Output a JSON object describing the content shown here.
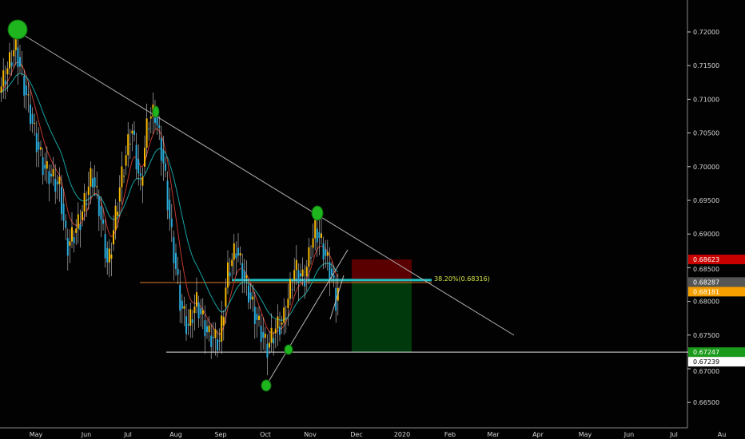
{
  "chart_data": {
    "type": "candlestick",
    "x_tick_labels": [
      "May",
      "Jun",
      "Jul",
      "Aug",
      "Sep",
      "Oct",
      "Nov",
      "Dec",
      "2020",
      "Feb",
      "Mar",
      "Apr",
      "May",
      "Jun",
      "Jul",
      "Au"
    ],
    "y_tick_labels": [
      "0.72000",
      "0.71500",
      "0.71000",
      "0.70500",
      "0.70000",
      "0.69500",
      "0.69000",
      "0.68500",
      "0.68000",
      "0.67500",
      "0.67000",
      "0.66500"
    ],
    "ylim": [
      0.6625,
      0.7245
    ],
    "closes": [
      [
        "2019-04-06",
        0.711
      ],
      [
        "2019-04-17",
        0.718
      ],
      [
        "2019-05-01",
        0.704
      ],
      [
        "2019-05-06",
        0.7
      ],
      [
        "2019-05-17",
        0.697
      ],
      [
        "2019-05-22",
        0.688
      ],
      [
        "2019-05-31",
        0.692
      ],
      [
        "2019-06-08",
        0.699
      ],
      [
        "2019-06-13",
        0.694
      ],
      [
        "2019-06-19",
        0.685
      ],
      [
        "2019-06-27",
        0.697
      ],
      [
        "2019-07-05",
        0.706
      ],
      [
        "2019-07-11",
        0.697
      ],
      [
        "2019-07-16",
        0.707
      ],
      [
        "2019-07-21",
        0.708
      ],
      [
        "2019-07-27",
        0.7
      ],
      [
        "2019-08-01",
        0.69
      ],
      [
        "2019-08-07",
        0.68
      ],
      [
        "2019-08-12",
        0.676
      ],
      [
        "2019-08-18",
        0.68
      ],
      [
        "2019-08-26",
        0.675
      ],
      [
        "2019-09-03",
        0.674
      ],
      [
        "2019-09-08",
        0.684
      ],
      [
        "2019-09-14",
        0.688
      ],
      [
        "2019-09-19",
        0.684
      ],
      [
        "2019-09-27",
        0.678
      ],
      [
        "2019-10-05",
        0.673
      ],
      [
        "2019-10-11",
        0.676
      ],
      [
        "2019-10-16",
        0.677
      ],
      [
        "2019-10-24",
        0.685
      ],
      [
        "2019-10-30",
        0.683
      ],
      [
        "2019-11-07",
        0.691
      ],
      [
        "2019-11-12",
        0.688
      ],
      [
        "2019-11-18",
        0.684
      ],
      [
        "2019-11-21",
        0.68
      ],
      [
        "2019-11-23",
        0.683
      ]
    ],
    "price_labels": [
      {
        "text": "0.68623",
        "value": 0.68623,
        "bg": "#c80000",
        "fg": "#ffffff"
      },
      {
        "text": "0.68287",
        "value": 0.68287,
        "bg": "#555555",
        "fg": "#ffffff"
      },
      {
        "text": "0.68181",
        "value": 0.68181,
        "bg": "#f5a000",
        "fg": "#ffffff"
      },
      {
        "text": "0.67247",
        "value": 0.67247,
        "bg": "#1a9a1a",
        "fg": "#ffffff"
      },
      {
        "text": "0.67239",
        "value": 0.67239,
        "bg": "#ffffff",
        "fg": "#000000"
      }
    ],
    "fib_label": "38.20%(0.68316)",
    "fib_value": 0.68316,
    "support_value": 0.67247,
    "orange_level": 0.6828,
    "position": {
      "stop": 0.68623,
      "entry": 0.68287,
      "target": 0.67247
    },
    "colors": {
      "bull": "#f5b800",
      "bear": "#29a9d8",
      "ma_fast": "#c0392b",
      "ma_slow": "#17a2a2",
      "fib": "#21c2c2",
      "trend": "#b0b0b0"
    }
  }
}
